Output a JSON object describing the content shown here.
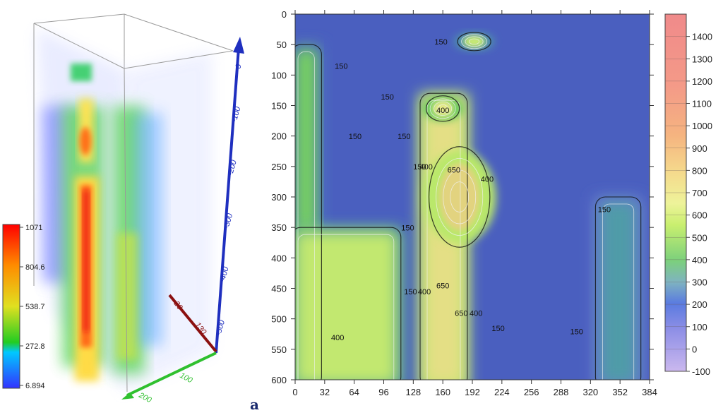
{
  "panel_label": "a",
  "colors": {
    "axis_blue": "#1f2fbf",
    "axis_red": "#8b1010",
    "axis_green": "#2fc02f",
    "box": "#9a9a9a"
  },
  "chart_data": [
    {
      "type": "volume-3d",
      "colorbar": {
        "ticks": [
          "1071",
          "804.6",
          "538.7",
          "272.8",
          "6.894"
        ],
        "range": [
          6.894,
          1071
        ],
        "colormap": "blue-green-yellow-red"
      },
      "axes": {
        "vertical": {
          "ticks": [
            "0",
            "-100",
            "-200",
            "-300",
            "-400",
            "-500"
          ]
        },
        "depth_axis": {
          "ticks": [
            "20",
            "130"
          ]
        },
        "horizontal": {
          "ticks": [
            "100",
            "200"
          ]
        }
      }
    },
    {
      "type": "heatmap",
      "subtype": "contour",
      "x_ticks": [
        0,
        32,
        64,
        96,
        128,
        160,
        192,
        224,
        256,
        288,
        320,
        352,
        384
      ],
      "y_ticks": [
        0,
        50,
        100,
        150,
        200,
        250,
        300,
        350,
        400,
        450,
        500,
        550,
        600
      ],
      "xlim": [
        0,
        384
      ],
      "ylim": [
        600,
        0
      ],
      "colorbar": {
        "ticks": [
          1400,
          1300,
          1200,
          1100,
          1000,
          900,
          800,
          700,
          600,
          500,
          400,
          300,
          200,
          100,
          0,
          -100
        ],
        "range": [
          -100,
          1500
        ]
      },
      "contour_labels": [
        {
          "text": "150",
          "x": 50,
          "y": 90
        },
        {
          "text": "150",
          "x": 100,
          "y": 140
        },
        {
          "text": "150",
          "x": 158,
          "y": 50
        },
        {
          "text": "150",
          "x": 65,
          "y": 205
        },
        {
          "text": "150",
          "x": 118,
          "y": 205
        },
        {
          "text": "150",
          "x": 135,
          "y": 255
        },
        {
          "text": "150",
          "x": 122,
          "y": 355
        },
        {
          "text": "150",
          "x": 125,
          "y": 460
        },
        {
          "text": "150",
          "x": 220,
          "y": 520
        },
        {
          "text": "150",
          "x": 305,
          "y": 525
        },
        {
          "text": "150",
          "x": 335,
          "y": 325
        },
        {
          "text": "400",
          "x": 160,
          "y": 162
        },
        {
          "text": "400",
          "x": 142,
          "y": 255
        },
        {
          "text": "400",
          "x": 140,
          "y": 460
        },
        {
          "text": "400",
          "x": 46,
          "y": 535
        },
        {
          "text": "400",
          "x": 208,
          "y": 275
        },
        {
          "text": "400",
          "x": 196,
          "y": 495
        },
        {
          "text": "650",
          "x": 172,
          "y": 260
        },
        {
          "text": "650",
          "x": 160,
          "y": 450
        },
        {
          "text": "650",
          "x": 180,
          "y": 495
        }
      ],
      "features": [
        {
          "kind": "plume",
          "x0": 140,
          "x1": 182,
          "y0": 130,
          "y1": 600,
          "level": 650
        },
        {
          "kind": "blob",
          "cx": 178,
          "cy": 300,
          "rx": 22,
          "ry": 55,
          "level": 700
        },
        {
          "kind": "blob",
          "cx": 160,
          "cy": 155,
          "rx": 12,
          "ry": 14,
          "level": 600
        },
        {
          "kind": "blob",
          "cx": 194,
          "cy": 45,
          "rx": 12,
          "ry": 10,
          "level": 500
        },
        {
          "kind": "column",
          "x0": 0,
          "x1": 24,
          "y0": 50,
          "y1": 600,
          "level": 380
        },
        {
          "kind": "region",
          "x0": 0,
          "x1": 110,
          "y0": 350,
          "y1": 600,
          "level": 480
        },
        {
          "kind": "column",
          "x0": 330,
          "x1": 370,
          "y0": 300,
          "y1": 600,
          "level": 250
        }
      ]
    }
  ]
}
